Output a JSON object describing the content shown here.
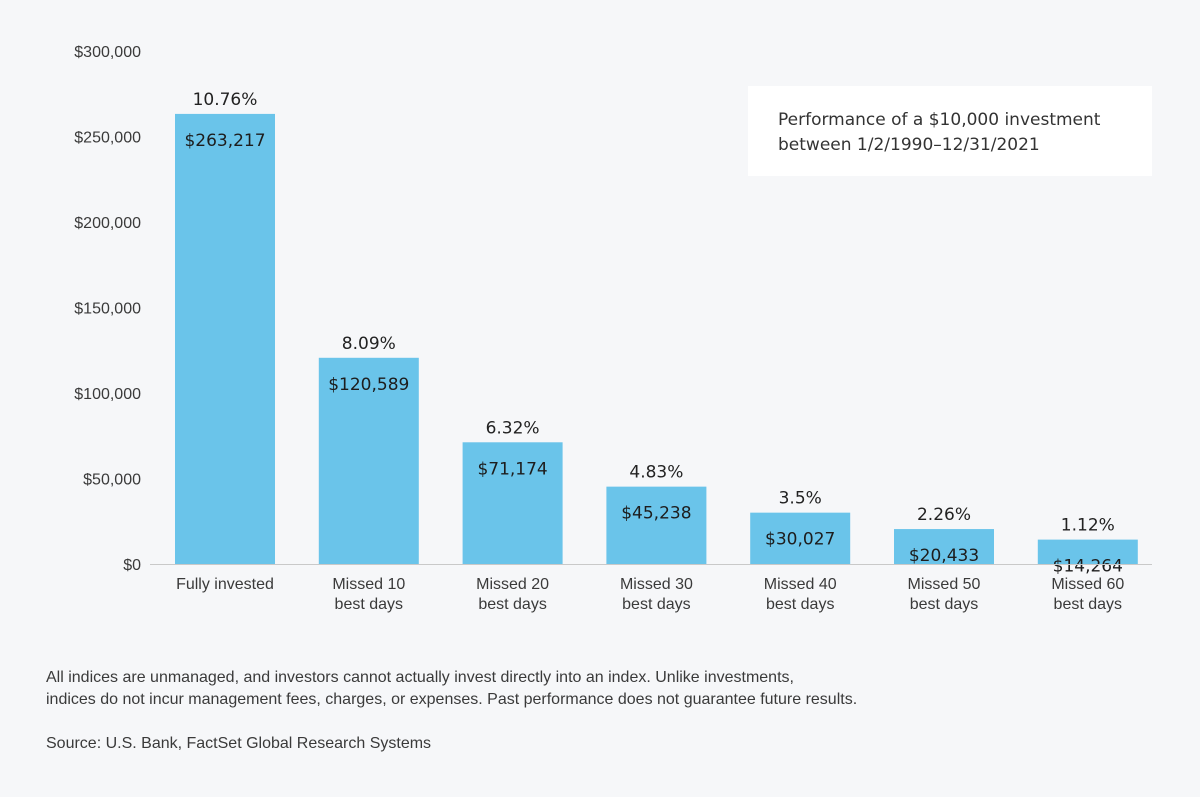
{
  "chart_data": {
    "type": "bar",
    "categories": [
      [
        "Fully invested"
      ],
      [
        "Missed 10",
        "best days"
      ],
      [
        "Missed 20",
        "best days"
      ],
      [
        "Missed 30",
        "best days"
      ],
      [
        "Missed 40",
        "best days"
      ],
      [
        "Missed 50",
        "best days"
      ],
      [
        "Missed 60",
        "best days"
      ]
    ],
    "values": [
      263217,
      120589,
      71174,
      45238,
      30027,
      20433,
      14264
    ],
    "value_labels": [
      "$263,217",
      "$120,589",
      "$71,174",
      "$45,238",
      "$30,027",
      "$20,433",
      "$14,264"
    ],
    "percent_labels": [
      "10.76%",
      "8.09%",
      "6.32%",
      "4.83%",
      "3.5%",
      "2.26%",
      "1.12%"
    ],
    "ylim": [
      0,
      300000
    ],
    "yticks": [
      0,
      50000,
      100000,
      150000,
      200000,
      250000,
      300000
    ],
    "ytick_labels": [
      "$0",
      "$50,000",
      "$100,000",
      "$150,000",
      "$200,000",
      "$250,000",
      "$300,000"
    ],
    "grid": false,
    "bar_color": "#6ac4ea",
    "axis_color": "#c9c9c9"
  },
  "info_box": {
    "line1": "Performance of a $10,000 investment",
    "line2": "between 1/2/1990–12/31/2021"
  },
  "footnote": {
    "line1": "All indices are unmanaged, and investors cannot actually invest directly into an index. Unlike investments,",
    "line2": "indices do not incur management fees, charges, or expenses. Past performance does not guarantee future results."
  },
  "source": "Source: U.S. Bank, FactSet Global Research Systems"
}
